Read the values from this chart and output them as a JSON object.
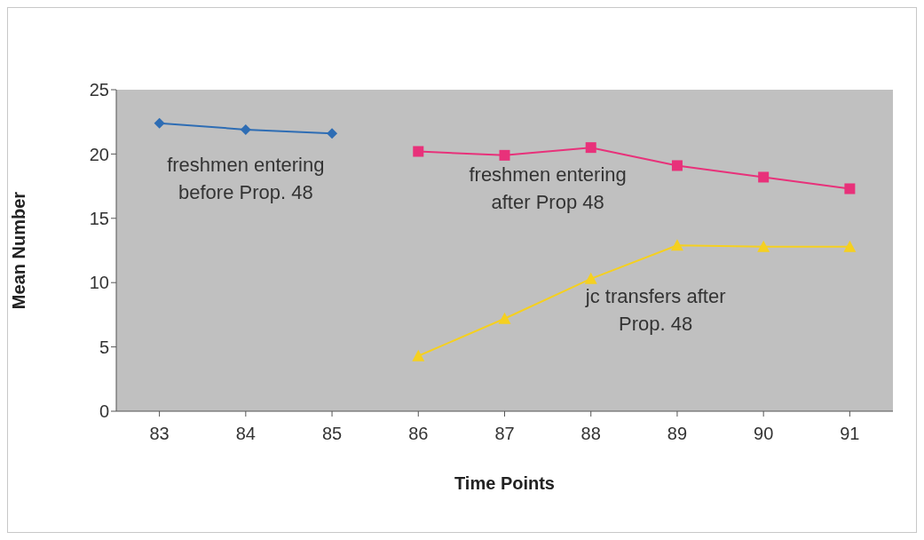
{
  "chart_data": {
    "type": "line",
    "xlabel": "Time Points",
    "ylabel": "Mean Number",
    "categories": [
      "83",
      "84",
      "85",
      "86",
      "87",
      "88",
      "89",
      "90",
      "91"
    ],
    "series": [
      {
        "name": "freshmen entering before Prop. 48",
        "color": "#2e6db4",
        "marker": "diamond",
        "values": [
          22.4,
          21.9,
          21.6,
          null,
          null,
          null,
          null,
          null,
          null
        ]
      },
      {
        "name": "freshmen entering after Prop 48",
        "color": "#e8317a",
        "marker": "square",
        "values": [
          null,
          null,
          null,
          20.2,
          19.9,
          20.5,
          19.1,
          18.2,
          17.3
        ]
      },
      {
        "name": "jc transfers after Prop. 48",
        "color": "#f5d020",
        "marker": "triangle",
        "values": [
          null,
          null,
          null,
          4.3,
          7.2,
          10.3,
          12.9,
          12.8,
          12.8
        ]
      }
    ],
    "ylim": [
      0,
      25
    ],
    "yticks": [
      0,
      5,
      10,
      15,
      20,
      25
    ]
  }
}
